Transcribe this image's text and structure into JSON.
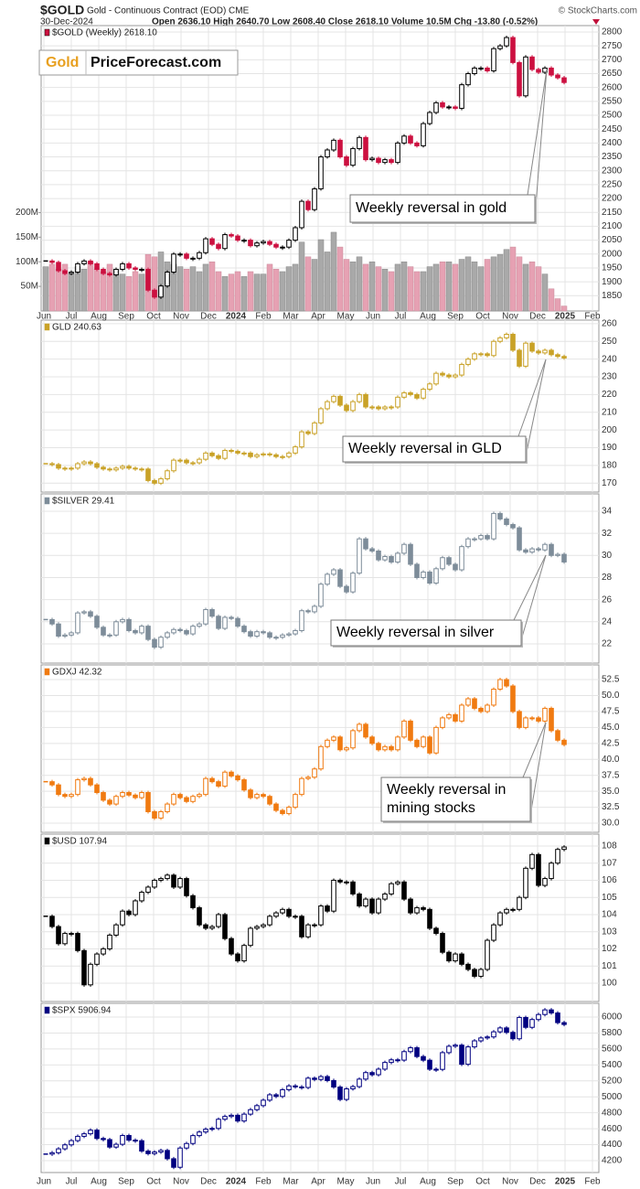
{
  "header": {
    "symbol": "$GOLD",
    "description": "Gold - Continuous Contract (EOD) CME",
    "date": "30-Dec-2024",
    "stats": "Open 2636.10 High 2640.70 Low 2608.40 Close 2618.10 Volume 10.5M Chg -13.80 (-0.52%)",
    "copyright": "© StockCharts.com",
    "logo_left": "Gold",
    "logo_right": "PriceForecast.com"
  },
  "time_axis": {
    "labels": [
      "Jun",
      "Jul",
      "Aug",
      "Sep",
      "Oct",
      "Nov",
      "Dec",
      "2024",
      "Feb",
      "Mar",
      "Apr",
      "May",
      "Jun",
      "Jul",
      "Aug",
      "Sep",
      "Oct",
      "Nov",
      "Dec",
      "2025",
      "Feb"
    ]
  },
  "chart_data": [
    {
      "type": "candlestick",
      "title": "$GOLD (Weekly) 2618.10",
      "annotation": [
        "Weekly reversal in gold"
      ],
      "color": "#000000",
      "down_color": "#cc1040",
      "grid": true,
      "ylim": [
        1795,
        2823
      ],
      "yticks": [
        1850,
        1900,
        1950,
        2000,
        2050,
        2100,
        2150,
        2200,
        2250,
        2300,
        2350,
        2400,
        2450,
        2500,
        2550,
        2600,
        2650,
        2700,
        2750,
        2800
      ],
      "values": [
        1975,
        1970,
        1940,
        1930,
        1935,
        1965,
        1975,
        1965,
        1945,
        1930,
        1925,
        1945,
        1965,
        1950,
        1945,
        1945,
        1870,
        1845,
        1885,
        1935,
        2000,
        2000,
        1985,
        1985,
        2005,
        2055,
        2035,
        2020,
        2070,
        2065,
        2050,
        2050,
        2030,
        2040,
        2045,
        2035,
        2025,
        2025,
        2050,
        2095,
        2190,
        2160,
        2235,
        2350,
        2375,
        2410,
        2350,
        2320,
        2380,
        2420,
        2340,
        2345,
        2330,
        2340,
        2330,
        2400,
        2425,
        2400,
        2390,
        2470,
        2510,
        2545,
        2530,
        2530,
        2525,
        2610,
        2650,
        2670,
        2670,
        2660,
        2740,
        2750,
        2780,
        2690,
        2570,
        2710,
        2665,
        2655,
        2670,
        2645,
        2635,
        2618.1
      ],
      "volume": {
        "up_color": "#a9a9a9",
        "down_color": "#e6a1b3",
        "ylim": [
          0,
          580
        ],
        "yticks": [
          {
            "value": 50,
            "label": "50M"
          },
          {
            "value": 100,
            "label": "100M"
          },
          {
            "value": 150,
            "label": "150M"
          },
          {
            "value": 200,
            "label": "200M"
          }
        ],
        "values": [
          90,
          95,
          85,
          95,
          75,
          90,
          85,
          100,
          85,
          80,
          95,
          85,
          75,
          70,
          80,
          75,
          115,
          110,
          120,
          100,
          95,
          90,
          85,
          90,
          80,
          95,
          100,
          80,
          70,
          75,
          80,
          70,
          80,
          75,
          75,
          95,
          85,
          80,
          90,
          95,
          140,
          110,
          105,
          145,
          120,
          160,
          130,
          105,
          100,
          110,
          95,
          100,
          90,
          85,
          80,
          95,
          100,
          90,
          80,
          80,
          90,
          95,
          100,
          100,
          95,
          105,
          110,
          100,
          90,
          105,
          110,
          115,
          125,
          130,
          110,
          95,
          100,
          90,
          75,
          45,
          25,
          10
        ]
      }
    },
    {
      "type": "candlestick",
      "title": "GLD 240.63",
      "annotation": [
        "Weekly reversal in GLD"
      ],
      "color": "#c9a227",
      "grid": true,
      "ylim": [
        165,
        262
      ],
      "yticks": [
        170,
        180,
        190,
        200,
        210,
        220,
        230,
        240,
        250,
        260
      ],
      "values": [
        181,
        180.5,
        178.5,
        178,
        178.5,
        181,
        182,
        181,
        179,
        178,
        177.5,
        178.5,
        179.5,
        178.5,
        178,
        178,
        171.5,
        170,
        172.5,
        177,
        183,
        183,
        181.5,
        181.5,
        183.5,
        187,
        185.5,
        184,
        188.5,
        188,
        187,
        187,
        185,
        186,
        186.5,
        186,
        185,
        185,
        187,
        190.5,
        199,
        198,
        204,
        212,
        216,
        219,
        214,
        211,
        216,
        220,
        213,
        213,
        212,
        213,
        213,
        218.5,
        221,
        220,
        218,
        223,
        226,
        232,
        231,
        230,
        231,
        237,
        240,
        243,
        243,
        242,
        250,
        252,
        254,
        245,
        236,
        249,
        244.5,
        243.5,
        245,
        242.5,
        241.5,
        240.63
      ]
    },
    {
      "type": "candlestick",
      "title": "$SILVER 29.41",
      "annotation": [
        "Weekly reversal in silver"
      ],
      "color": "#7d8c99",
      "grid": true,
      "ylim": [
        20.26,
        35.57
      ],
      "yticks": [
        22,
        24,
        26,
        28,
        30,
        32,
        34
      ],
      "values": [
        24.2,
        23.8,
        22.7,
        22.8,
        23.0,
        24.8,
        24.9,
        24.5,
        23.5,
        22.8,
        22.8,
        24.0,
        24.2,
        23.2,
        23.0,
        23.6,
        22.4,
        21.7,
        22.6,
        23.0,
        23.3,
        23.2,
        22.9,
        23.6,
        23.8,
        25.1,
        24.5,
        23.4,
        24.4,
        24.3,
        23.6,
        23.1,
        22.7,
        23.1,
        23.0,
        22.6,
        22.6,
        22.8,
        22.9,
        23.2,
        25.0,
        24.9,
        25.4,
        27.4,
        28.3,
        28.7,
        27.2,
        26.7,
        28.4,
        31.5,
        30.6,
        30.4,
        29.6,
        29.9,
        29.4,
        30.2,
        31.0,
        29.2,
        28.0,
        28.5,
        27.5,
        28.8,
        29.8,
        29.2,
        28.7,
        30.8,
        31.5,
        31.5,
        31.8,
        31.5,
        33.8,
        33.3,
        32.8,
        32.5,
        30.5,
        30.3,
        30.6,
        30.5,
        31.0,
        30.0,
        30.1,
        29.41
      ]
    },
    {
      "type": "candlestick",
      "title": "GDXJ 42.32",
      "annotation": [
        "Weekly reversal in",
        "mining stocks"
      ],
      "color": "#f07a10",
      "grid": true,
      "ylim": [
        28.57,
        54.8
      ],
      "yticks": [
        {
          "value": 30,
          "label": "30.0"
        },
        32.5,
        {
          "value": 35,
          "label": "35.0"
        },
        37.5,
        {
          "value": 40,
          "label": "40.0"
        },
        42.5,
        {
          "value": 45,
          "label": "45.0"
        },
        47.5,
        {
          "value": 50,
          "label": "50.0"
        },
        52.5
      ],
      "values": [
        36.5,
        36.0,
        34.5,
        34.2,
        34.5,
        36.8,
        37.0,
        36.0,
        34.8,
        33.6,
        33.0,
        34.2,
        34.8,
        34.4,
        34.0,
        34.8,
        31.8,
        30.8,
        31.8,
        33.0,
        34.5,
        34.0,
        33.4,
        34.2,
        34.5,
        37.0,
        36.5,
        35.8,
        38.0,
        37.4,
        36.8,
        35.2,
        34.0,
        34.5,
        34.2,
        33.0,
        32.0,
        31.5,
        32.5,
        34.5,
        37.0,
        37.2,
        38.5,
        42.0,
        43.0,
        43.5,
        41.5,
        41.8,
        44.5,
        45.5,
        43.5,
        42.5,
        41.5,
        42.0,
        41.5,
        43.5,
        46.0,
        43.0,
        42.0,
        43.5,
        41.0,
        45.0,
        46.5,
        47.0,
        46.0,
        48.5,
        49.5,
        48.0,
        47.5,
        48.5,
        51.0,
        52.5,
        51.5,
        47.5,
        45.0,
        46.5,
        46.5,
        46.0,
        48.0,
        44.5,
        43.0,
        42.32
      ]
    },
    {
      "type": "candlestick",
      "title": "$USD 107.94",
      "color": "#000000",
      "grid": true,
      "ylim": [
        98.93,
        108.69
      ],
      "yticks": [
        100,
        101,
        102,
        103,
        104,
        105,
        106,
        107,
        108
      ],
      "values": [
        103.9,
        103.3,
        102.3,
        102.9,
        102.9,
        101.9,
        99.9,
        101.1,
        101.7,
        102.0,
        102.8,
        103.4,
        104.2,
        104.0,
        104.8,
        105.3,
        105.6,
        106.0,
        106.1,
        106.3,
        105.6,
        106.1,
        105.1,
        104.4,
        103.4,
        103.2,
        103.3,
        104.0,
        102.6,
        101.7,
        101.3,
        102.2,
        103.2,
        103.3,
        103.4,
        103.9,
        104.1,
        104.3,
        103.9,
        103.9,
        102.7,
        103.4,
        103.4,
        104.5,
        104.2,
        106.0,
        105.9,
        105.9,
        105.2,
        104.5,
        104.9,
        104.1,
        104.9,
        105.2,
        105.8,
        105.9,
        104.9,
        104.1,
        104.4,
        104.3,
        103.2,
        102.9,
        101.8,
        101.3,
        101.7,
        101.1,
        100.8,
        100.4,
        100.8,
        102.5,
        103.4,
        104.1,
        104.3,
        104.3,
        105.0,
        106.7,
        107.5,
        105.7,
        106.1,
        107.0,
        107.8,
        107.94
      ]
    },
    {
      "type": "candlestick",
      "title": "$SPX 5906.94",
      "color": "#000080",
      "grid": true,
      "ylim": [
        4051,
        6172
      ],
      "yticks": [
        4200,
        4400,
        4600,
        4800,
        5000,
        5200,
        5400,
        5600,
        5800,
        6000
      ],
      "values": [
        4282,
        4299,
        4348,
        4398,
        4451,
        4505,
        4537,
        4582,
        4478,
        4464,
        4370,
        4405,
        4515,
        4457,
        4450,
        4320,
        4288,
        4308,
        4328,
        4224,
        4117,
        4358,
        4415,
        4514,
        4559,
        4594,
        4604,
        4719,
        4754,
        4769,
        4697,
        4783,
        4839,
        4890,
        4958,
        5026,
        5005,
        5089,
        5137,
        5124,
        5117,
        5234,
        5218,
        5254,
        5204,
        5123,
        4967,
        5100,
        5128,
        5222,
        5304,
        5277,
        5347,
        5431,
        5464,
        5460,
        5567,
        5615,
        5505,
        5459,
        5346,
        5344,
        5554,
        5634,
        5648,
        5408,
        5626,
        5702,
        5738,
        5751,
        5815,
        5864,
        5808,
        5728,
        5995,
        5871,
        5969,
        6032,
        6090,
        6051,
        5930,
        5906.94
      ]
    }
  ]
}
